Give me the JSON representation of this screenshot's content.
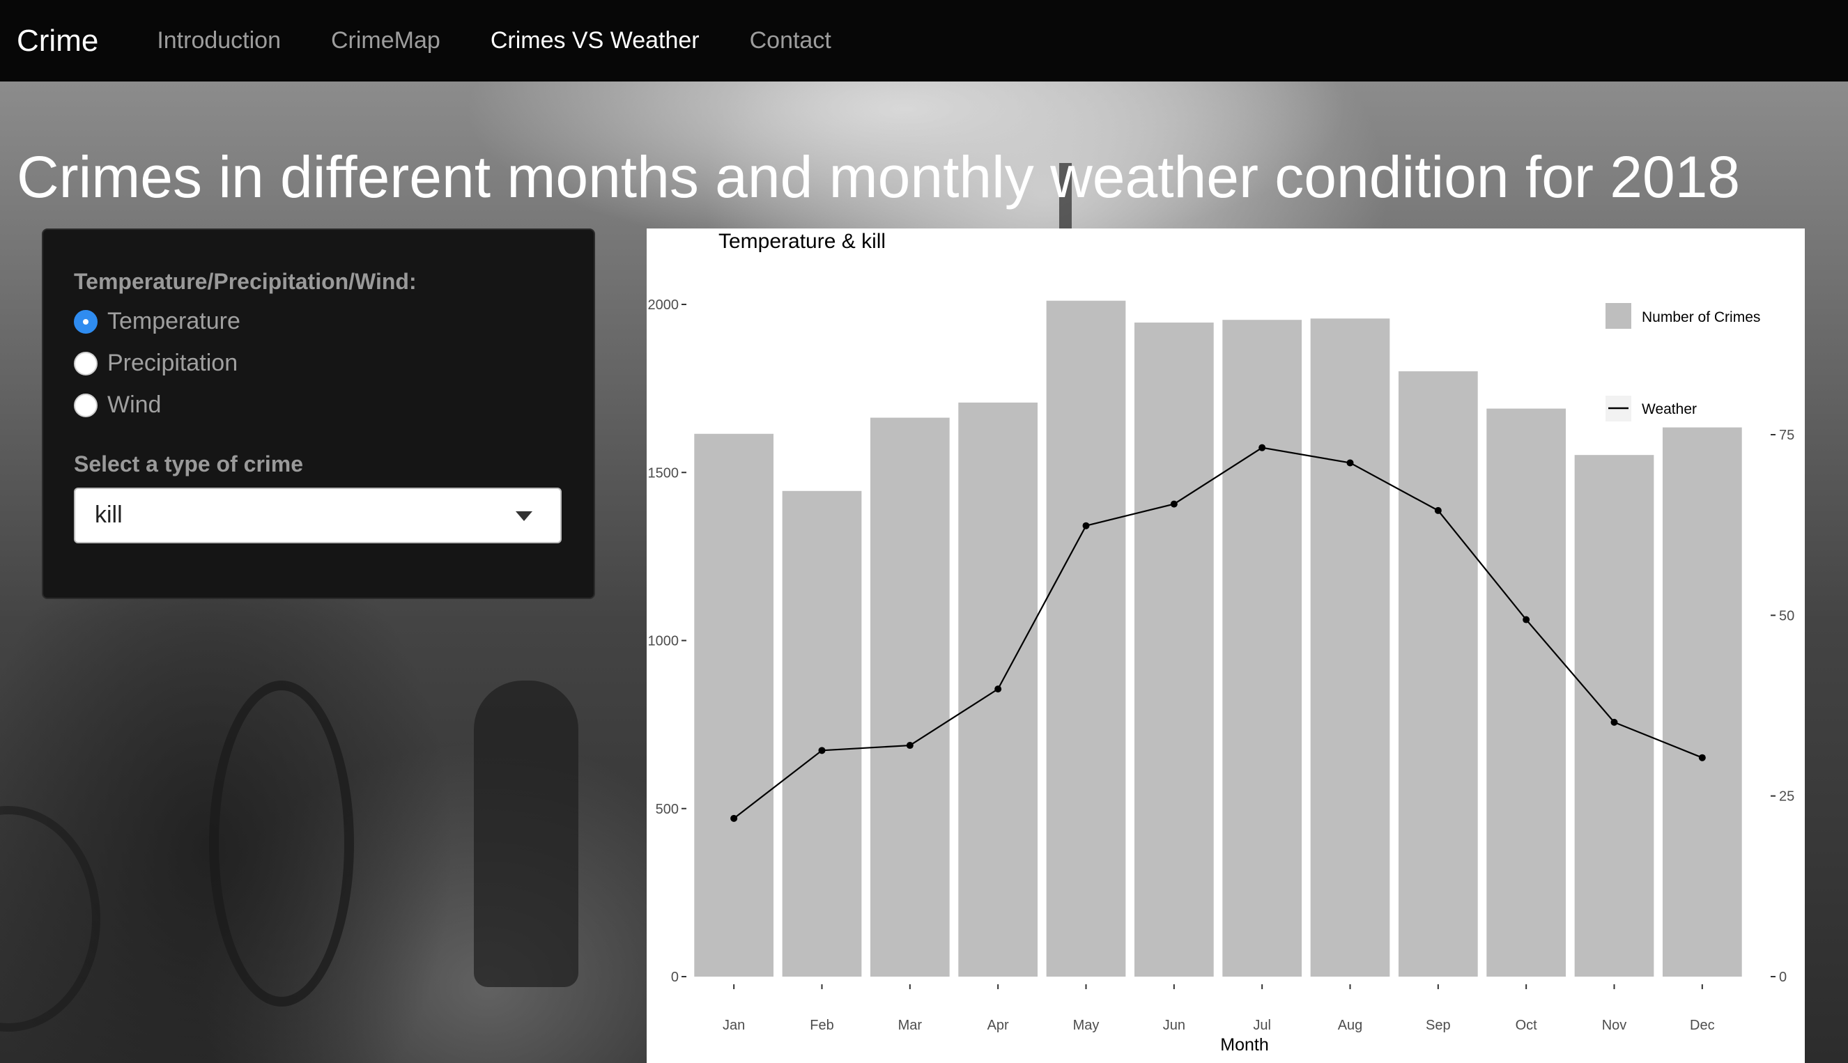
{
  "navbar": {
    "brand": "Crime",
    "items": [
      {
        "label": "Introduction",
        "active": false
      },
      {
        "label": "CrimeMap",
        "active": false
      },
      {
        "label": "Crimes VS Weather",
        "active": true
      },
      {
        "label": "Contact",
        "active": false
      }
    ]
  },
  "page": {
    "title": "Crimes in different months and monthly weather condition for 2018"
  },
  "sidebar": {
    "radio_label": "Temperature/Precipitation/Wind:",
    "options": [
      {
        "label": "Temperature",
        "checked": true
      },
      {
        "label": "Precipitation",
        "checked": false
      },
      {
        "label": "Wind",
        "checked": false
      }
    ],
    "select_label": "Select a type of crime",
    "select_value": "kill"
  },
  "colors": {
    "navbar_bg": "#070707",
    "radio_selected": "#2f8cf0",
    "bar_fill": "#bebebe",
    "line": "#000000"
  },
  "chart_data": {
    "type": "bar",
    "title": "Temperature & kill",
    "xlabel": "Month",
    "ylabel": "",
    "categories": [
      "Jan",
      "Feb",
      "Mar",
      "Apr",
      "May",
      "Jun",
      "Jul",
      "Aug",
      "Sep",
      "Oct",
      "Nov",
      "Dec"
    ],
    "series": [
      {
        "name": "Number of Crimes",
        "type": "bar",
        "axis": "left",
        "values": [
          1615,
          1445,
          1663,
          1708,
          2011,
          1946,
          1954,
          1958,
          1801,
          1690,
          1552,
          1634
        ]
      },
      {
        "name": "Weather",
        "type": "line",
        "axis": "right",
        "values": [
          21.9,
          31.3,
          32.0,
          39.8,
          62.4,
          65.4,
          73.2,
          71.1,
          64.5,
          49.4,
          35.2,
          30.3
        ]
      }
    ],
    "ylim_left": [
      0,
      2000
    ],
    "yticks_left": [
      0,
      500,
      1000,
      1500,
      2000
    ],
    "ylim_right": [
      0,
      75
    ],
    "yticks_right": [
      0,
      25,
      50,
      75
    ],
    "grid": false,
    "legend_position": "right"
  }
}
